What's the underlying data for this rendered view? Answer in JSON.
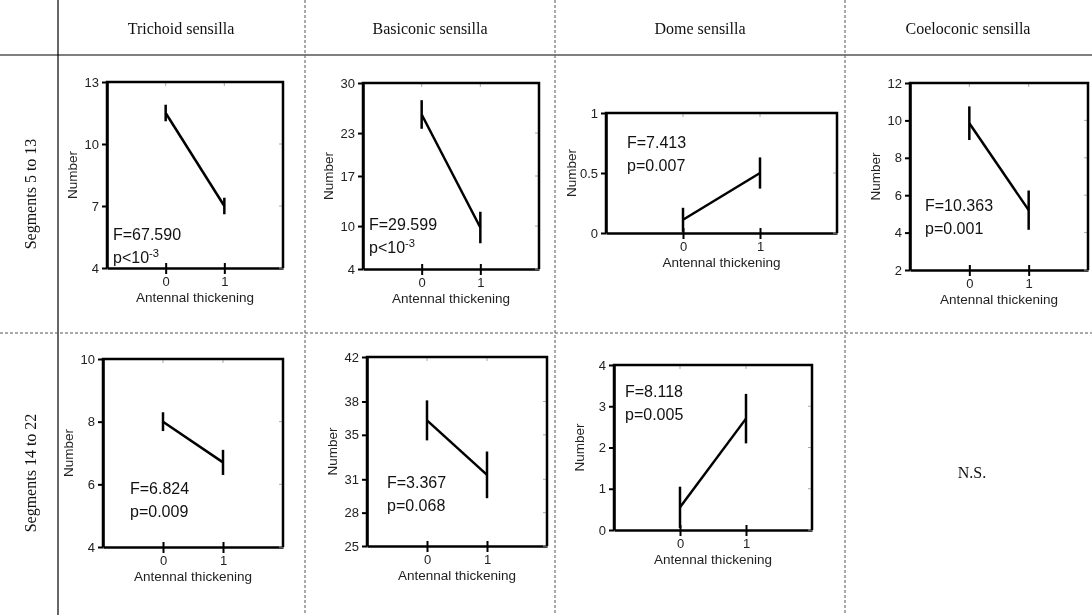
{
  "chart_data": [
    {
      "type": "other",
      "annotations": [
        "Trichoid sensilla",
        "Basiconic sensilla",
        "Dome sensilla",
        "Coeloconic sensilla",
        "Segments 5 to 13",
        "Segments 14 to 22",
        "N.S."
      ]
    },
    {
      "type": "line",
      "categories": [
        "0",
        "1"
      ],
      "ylim": [
        4,
        13
      ],
      "yticks": [
        4,
        7,
        10,
        13
      ],
      "xlabel": "Antennal thickening",
      "ylabel": "Number",
      "marker": "none",
      "annotations": [
        "F=67.590",
        "p<10$^{-3}$"
      ],
      "series": [
        {
          "color": "#000000",
          "values": [
            11.5,
            7.0
          ],
          "errors": [
            0.4,
            0.4
          ]
        }
      ]
    },
    {
      "type": "line",
      "categories": [
        "0",
        "1"
      ],
      "ylim": [
        4,
        30
      ],
      "yticks": [
        4,
        10,
        17,
        23,
        30
      ],
      "xlabel": "Antennal thickening",
      "ylabel": "Number",
      "marker": "none",
      "annotations": [
        "F=29.599",
        "p<10$^{-3}$"
      ],
      "series": [
        {
          "color": "#000000",
          "values": [
            25.6,
            9.8
          ],
          "errors": [
            2,
            2.2
          ]
        }
      ]
    },
    {
      "type": "line",
      "categories": [
        "0",
        "1"
      ],
      "ylim": [
        0,
        1
      ],
      "yticks": [
        0,
        0.5,
        1
      ],
      "xlabel": "Antennal thickening",
      "ylabel": "Number",
      "marker": "none",
      "annotations": [
        "F=7.413",
        "p=0.007"
      ],
      "series": [
        {
          "color": "#000000",
          "values": [
            0.11,
            0.5
          ],
          "errors": [
            0.1,
            0.13
          ]
        }
      ]
    },
    {
      "type": "line",
      "categories": [
        "0",
        "1"
      ],
      "ylim": [
        2,
        12
      ],
      "yticks": [
        2,
        4,
        6,
        8,
        10,
        12
      ],
      "xlabel": "Antennal thickening",
      "ylabel": "Number",
      "marker": "none",
      "annotations": [
        "F=10.363",
        "p=0.001"
      ],
      "series": [
        {
          "color": "#000000",
          "values": [
            9.85,
            5.2
          ],
          "errors": [
            0.9,
            1.05
          ]
        }
      ]
    },
    {
      "type": "line",
      "categories": [
        "0",
        "1"
      ],
      "ylim": [
        4,
        10
      ],
      "yticks": [
        4,
        6,
        8,
        10
      ],
      "xlabel": "Antennal thickening",
      "ylabel": "Number",
      "marker": "none",
      "annotations": [
        "F=6.824",
        "p=0.009"
      ],
      "series": [
        {
          "color": "#000000",
          "values": [
            8.0,
            6.7
          ],
          "errors": [
            0.3,
            0.4
          ]
        }
      ]
    },
    {
      "type": "line",
      "categories": [
        "0",
        "1"
      ],
      "ylim": [
        25,
        42
      ],
      "yticks": [
        25,
        28,
        31,
        35,
        38,
        42
      ],
      "xlabel": "Antennal thickening",
      "ylabel": "Number",
      "marker": "none",
      "annotations": [
        "F=3.367",
        "p=0.068"
      ],
      "series": [
        {
          "color": "#000000",
          "values": [
            36.3,
            31.4
          ],
          "errors": [
            1.8,
            2.1
          ]
        }
      ]
    },
    {
      "type": "line",
      "categories": [
        "0",
        "1"
      ],
      "ylim": [
        0,
        4
      ],
      "yticks": [
        0,
        1,
        2,
        3,
        4
      ],
      "xlabel": "Antennal thickening",
      "ylabel": "Number",
      "marker": "none",
      "annotations": [
        "F=8.118",
        "p=0.005"
      ],
      "series": [
        {
          "color": "#000000",
          "values": [
            0.55,
            2.7
          ],
          "errors": [
            0.5,
            0.6
          ]
        }
      ]
    }
  ]
}
